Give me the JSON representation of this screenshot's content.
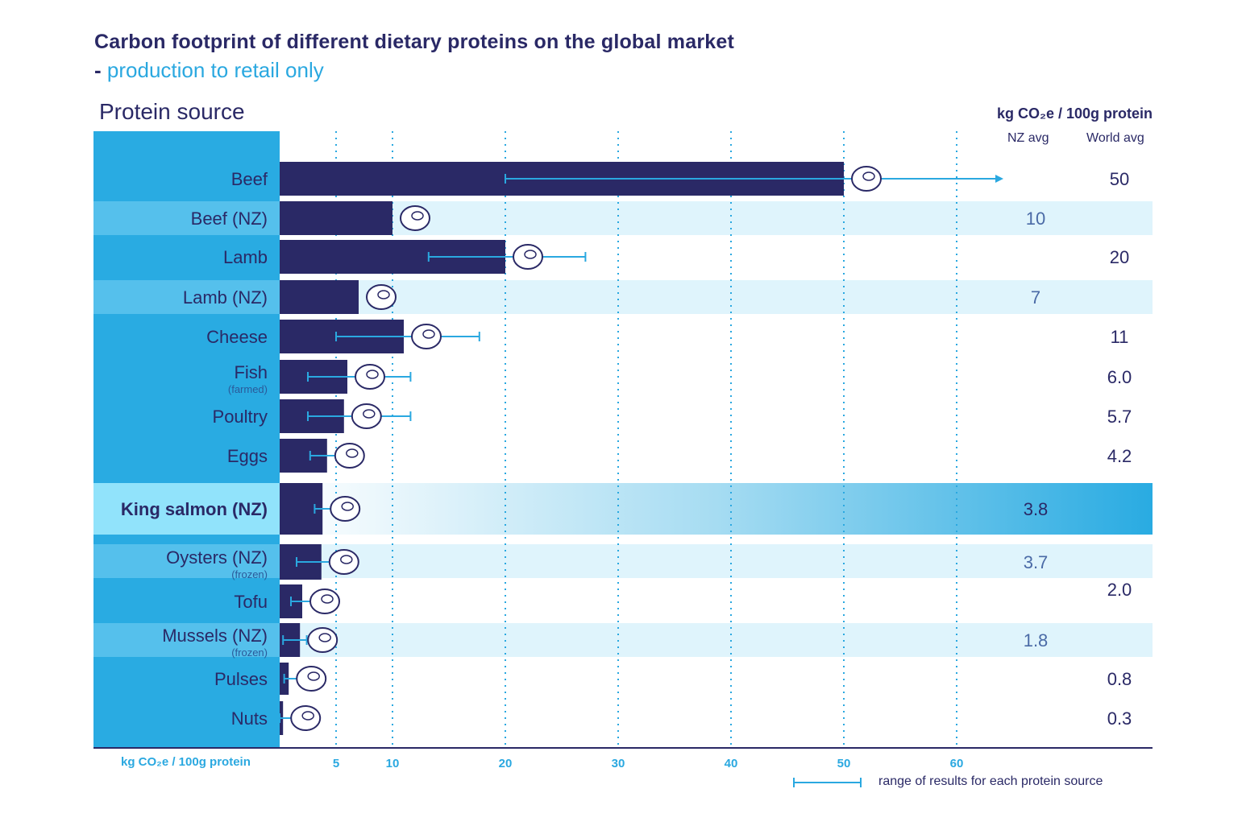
{
  "header": {
    "title": "Carbon footprint of different dietary proteins on the global market",
    "subtitle_dash": "-",
    "subtitle": "production to retail only",
    "left_heading": "Protein source",
    "right_heading": "kg CO₂e / 100g protein",
    "col_nz": "NZ avg",
    "col_world": "World avg"
  },
  "footer": {
    "axis_unit": "kg CO₂e / 100g protein",
    "legend_label": "range of results for each protein source"
  },
  "colors": {
    "bar": "#2a2966",
    "range": "#2aa8e0",
    "label_bg": "#29abe2",
    "label_bg_nz": "#55c0ec",
    "row_nz_bg": "#dff4fc",
    "highlight_label_bg": "#91e3fb",
    "grid": "#2aa8e0"
  },
  "chart_data": {
    "type": "bar",
    "orientation": "horizontal",
    "title": "Carbon footprint of different dietary proteins on the global market - production to retail only",
    "xlabel": "kg CO₂e / 100g protein",
    "ylabel": "Protein source",
    "xlim": [
      0,
      65
    ],
    "xticks": [
      5,
      10,
      20,
      30,
      40,
      50,
      60
    ],
    "grid": true,
    "legend": "bottom-right",
    "rows": [
      {
        "label": "Beef",
        "sub": "",
        "group": "world",
        "value": 50,
        "value_label": "50",
        "range": [
          20,
          64
        ],
        "range_arrow": true,
        "icon": "steak-icon"
      },
      {
        "label": "Beef (NZ)",
        "sub": "",
        "group": "nz",
        "value": 10,
        "value_label": "10",
        "range": null,
        "icon": "steak-icon"
      },
      {
        "label": "Lamb",
        "sub": "",
        "group": "world",
        "value": 20,
        "value_label": "20",
        "range": [
          13.2,
          27.1
        ],
        "icon": "lamb-chop-icon"
      },
      {
        "label": "Lamb (NZ)",
        "sub": "",
        "group": "nz",
        "value": 7,
        "value_label": "7",
        "range": null,
        "icon": "lamb-chop-icon"
      },
      {
        "label": "Cheese",
        "sub": "",
        "group": "world",
        "value": 11,
        "value_label": "11",
        "range": [
          5,
          17.7
        ],
        "icon": "cheese-icon"
      },
      {
        "label": "Fish",
        "sub": "(farmed)",
        "group": "world",
        "value": 6.0,
        "value_label": "6.0",
        "range": [
          2.5,
          11.6
        ],
        "icon": "fish-icon"
      },
      {
        "label": "Poultry",
        "sub": "",
        "group": "world",
        "value": 5.7,
        "value_label": "5.7",
        "range": [
          2.5,
          11.6
        ],
        "icon": "drumstick-icon"
      },
      {
        "label": "Eggs",
        "sub": "",
        "group": "world",
        "value": 4.2,
        "value_label": "4.2",
        "range": [
          2.7,
          7.4
        ],
        "icon": "egg-icon"
      },
      {
        "label": "King salmon (NZ)",
        "sub": "",
        "group": "highlight",
        "value": 3.8,
        "value_label": "3.8",
        "range": [
          3.1,
          5.0
        ],
        "icon": "salmon-fillet-icon"
      },
      {
        "label": "Oysters (NZ)",
        "sub": "(frozen)",
        "group": "nz",
        "value": 3.7,
        "value_label": "3.7",
        "range": [
          1.5,
          5.7
        ],
        "icon": "oyster-icon"
      },
      {
        "label": "Tofu",
        "sub": "",
        "group": "world",
        "value": 2.0,
        "value_label": "2.0",
        "range": [
          1.0,
          3.4
        ],
        "icon": "tofu-icon"
      },
      {
        "label": "Mussels (NZ)",
        "sub": "(frozen)",
        "group": "nz",
        "value": 1.8,
        "value_label": "1.8",
        "range": [
          0.3,
          2.4
        ],
        "icon": "mussel-icon"
      },
      {
        "label": "Pulses",
        "sub": "",
        "group": "world",
        "value": 0.8,
        "value_label": "0.8",
        "range": [
          0.4,
          2.0
        ],
        "icon": "pulses-icon"
      },
      {
        "label": "Nuts",
        "sub": "",
        "group": "world",
        "value": 0.3,
        "value_label": "0.3",
        "range": [
          0.0,
          2.9
        ],
        "icon": "nuts-icon"
      }
    ]
  }
}
